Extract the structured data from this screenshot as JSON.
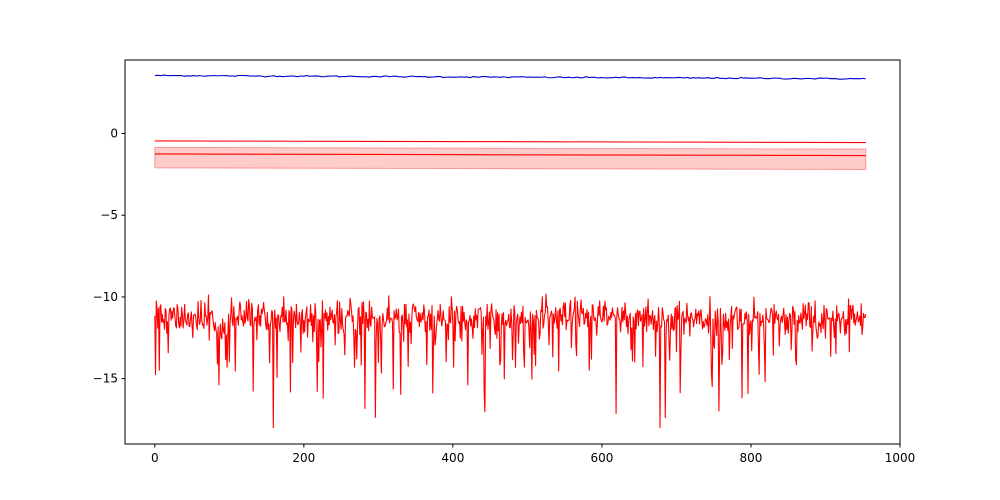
{
  "chart_data": {
    "type": "line",
    "title": "",
    "xlabel": "",
    "ylabel": "",
    "xlim": [
      -40,
      1000
    ],
    "ylim": [
      -19,
      4.5
    ],
    "xticks": [
      0,
      200,
      400,
      600,
      800,
      1000
    ],
    "xtick_labels": [
      "0",
      "200",
      "400",
      "600",
      "800",
      "1000"
    ],
    "yticks": [
      0,
      -5,
      -10,
      -15
    ],
    "ytick_labels": [
      "0",
      "−5",
      "−10",
      "−15"
    ],
    "grid": false,
    "legend": "none",
    "n_points": 955,
    "series": [
      {
        "color": "#0000cc",
        "style": "line",
        "x_range": [
          0,
          954
        ],
        "start": 3.55,
        "end": 3.35,
        "noise_std": 0.02
      },
      {
        "color": "#ff0000",
        "style": "line",
        "x_range": [
          0,
          954
        ],
        "start": -0.45,
        "end": -0.55
      },
      {
        "color": "#ff0000",
        "style": "line-with-band",
        "x_range": [
          0,
          954
        ],
        "start": -1.25,
        "end": -1.35,
        "band_upper_start": -0.85,
        "band_upper_end": -0.95,
        "band_lower_start": -2.1,
        "band_lower_end": -2.2
      },
      {
        "color": "#ff0000",
        "style": "line",
        "x_range": [
          0,
          954
        ],
        "median": -11.3,
        "typical_max": -10.0,
        "min": -18.0,
        "noise": "heavy-tailed downward spikes"
      }
    ]
  }
}
